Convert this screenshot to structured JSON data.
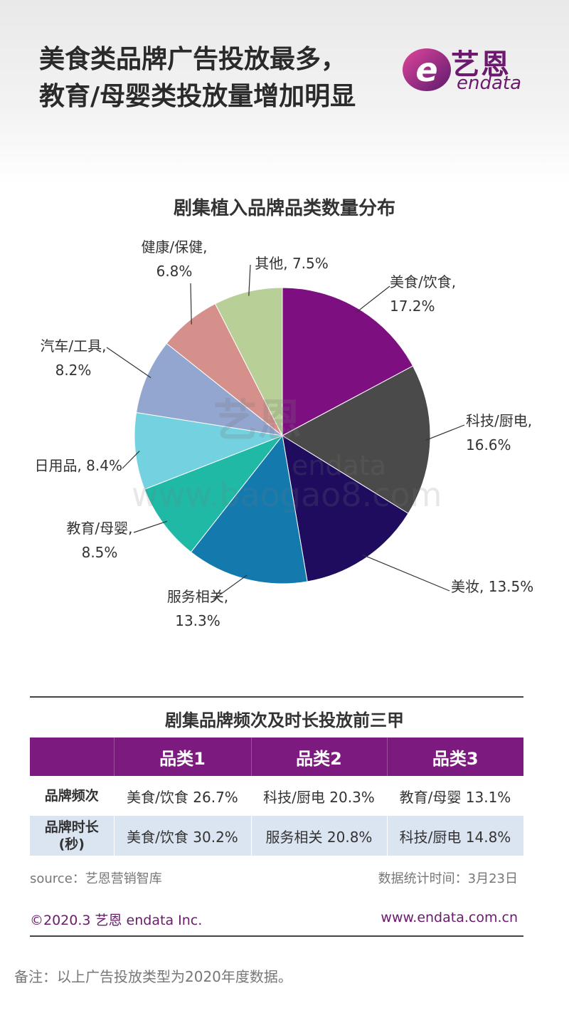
{
  "headline": {
    "line1": "美食类品牌广告投放最多，",
    "line2": "教育/母婴类投放量增加明显"
  },
  "brand": {
    "cn": "艺恩",
    "en": "endata",
    "color": "#6b1a6e"
  },
  "watermark": {
    "cn": "艺恩",
    "en": "endata",
    "url": "www.baogao8.com"
  },
  "chart_data": {
    "type": "pie",
    "title": "剧集植入品牌品类数量分布",
    "slices": [
      {
        "label": "美食/饮食",
        "value": 17.2,
        "text": "17.2%",
        "color": "#7d0f80"
      },
      {
        "label": "科技/厨电",
        "value": 16.6,
        "text": "16.6%",
        "color": "#4a4a4a"
      },
      {
        "label": "美妆",
        "value": 13.5,
        "text": "13.5%",
        "color": "#1f0c5e"
      },
      {
        "label": "服务相关",
        "value": 13.3,
        "text": "13.3%",
        "color": "#1479ad"
      },
      {
        "label": "教育/母婴",
        "value": 8.5,
        "text": "8.5%",
        "color": "#1fb9a5"
      },
      {
        "label": "日用品",
        "value": 8.4,
        "text": "8.4%",
        "color": "#74d1e0"
      },
      {
        "label": "汽车/工具",
        "value": 8.2,
        "text": "8.2%",
        "color": "#93a6cf"
      },
      {
        "label": "健康/保健",
        "value": 6.8,
        "text": "6.8%",
        "color": "#d5908c"
      },
      {
        "label": "其他",
        "value": 7.5,
        "text": "7.5%",
        "color": "#b9cf98"
      }
    ]
  },
  "table": {
    "title": "剧集品牌频次及时长投放前三甲",
    "headers": [
      "",
      "品类1",
      "品类2",
      "品类3"
    ],
    "rows": [
      {
        "label": "品牌频次",
        "cells": [
          "美食/饮食 26.7%",
          "科技/厨电 20.3%",
          "教育/母婴 13.1%"
        ]
      },
      {
        "label": "品牌时长\n(秒)",
        "cells": [
          "美食/饮食  30.2%",
          "服务相关 20.8%",
          "科技/厨电 14.8%"
        ]
      }
    ],
    "header_color": "#7d1a7f",
    "alt_row_color": "#dbe5f1"
  },
  "footer": {
    "source": "source：艺恩营销智库",
    "stat_time": "数据统计时间：3月23日",
    "copyright": "©2020.3  艺恩 endata Inc.",
    "website": "www.endata.com.cn"
  },
  "note": "备注：以上广告投放类型为2020年度数据。"
}
